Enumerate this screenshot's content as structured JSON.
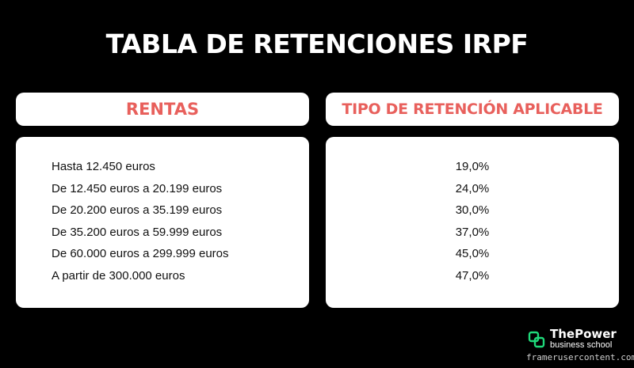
{
  "title": "TABLA DE RETENCIONES IRPF",
  "colors": {
    "background": "#000000",
    "header_text": "#e8605c",
    "panel": "#ffffff",
    "logo_accent": "#1fd97a"
  },
  "table": {
    "col_rentas": "RENTAS",
    "col_tipo": "TIPO DE RETENCIÓN APLICABLE",
    "rows": [
      {
        "renta": "Hasta 12.450 euros",
        "tipo": "19,0%"
      },
      {
        "renta": "De 12.450 euros a 20.199 euros",
        "tipo": "24,0%"
      },
      {
        "renta": "De 20.200 euros a 35.199 euros",
        "tipo": "30,0%"
      },
      {
        "renta": "De 35.200 euros a 59.999 euros",
        "tipo": "37,0%"
      },
      {
        "renta": "De 60.000 euros a 299.999 euros",
        "tipo": "45,0%"
      },
      {
        "renta": "A partir de 300.000 euros",
        "tipo": "47,0%"
      }
    ]
  },
  "logo": {
    "icon": "thepower-logo-icon",
    "name": "ThePower",
    "sub": "business school"
  },
  "watermark": "framerusercontent.com"
}
